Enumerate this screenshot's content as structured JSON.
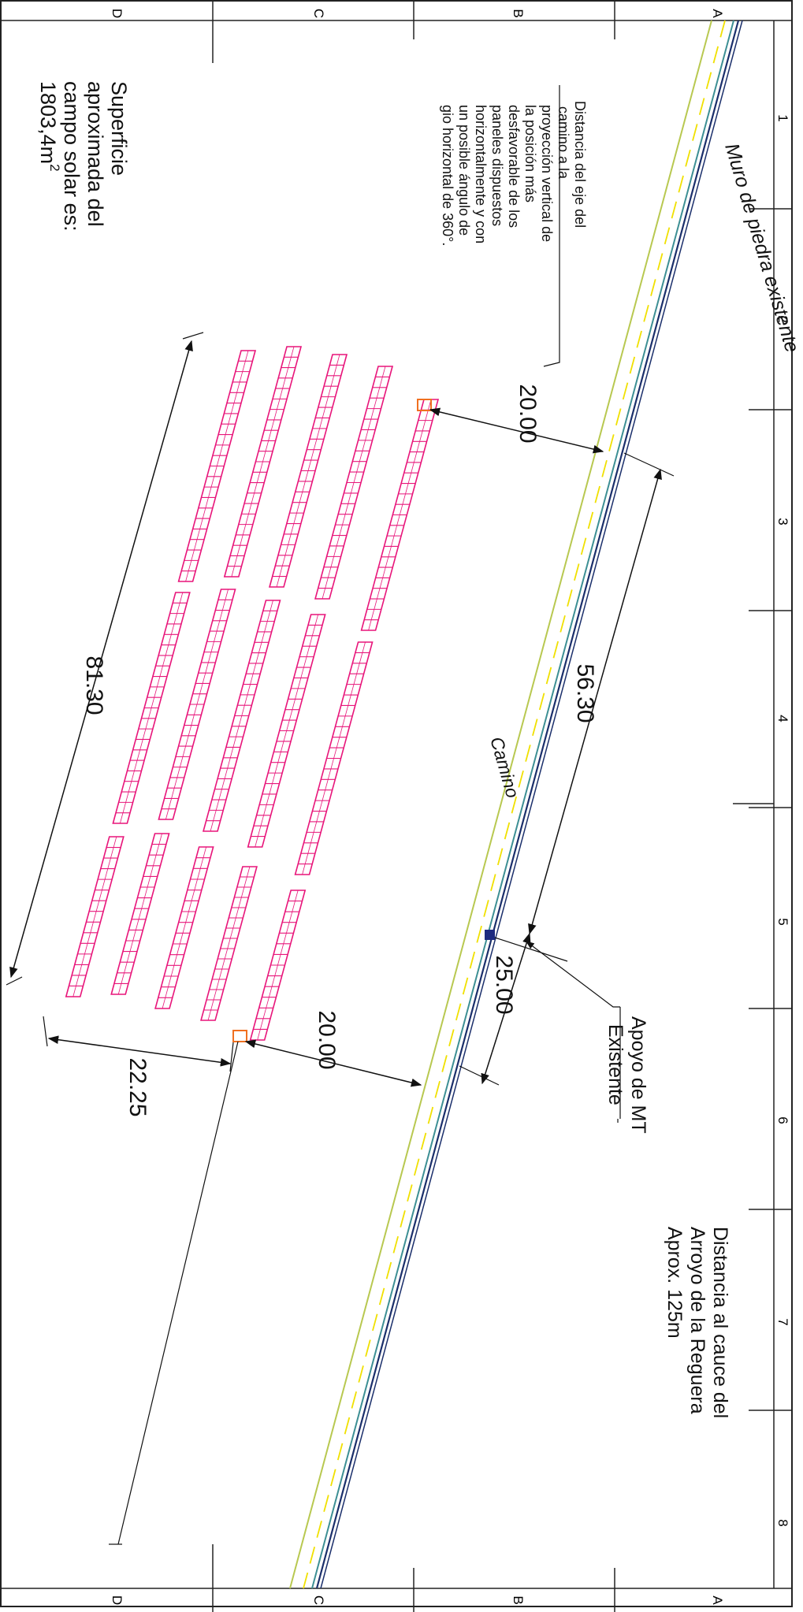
{
  "frame": {
    "row_letters": [
      "D",
      "C",
      "B",
      "A"
    ],
    "col_numbers": [
      "1",
      "2",
      "3",
      "4",
      "5",
      "6",
      "7",
      "8"
    ]
  },
  "labels": {
    "muro": "Muro de piedra existente",
    "camino": "Camino",
    "apoyo": [
      "Apoyo de MT",
      "Existente"
    ],
    "distancia_arroyo": [
      "Distancia al cauce del",
      "Arroyo de la Reguera",
      "Aprox. 125m"
    ],
    "superficie": [
      "Superficie",
      "aproximada del",
      "campo solar es:",
      "1803,4m"
    ],
    "superficie_sup": "2",
    "distancia_eje": [
      "Distancia del eje del",
      "camino a la",
      "proyección vertical de",
      "la posición más",
      "desfavorable de los",
      "paneles dispuestos",
      "horizontalmente y con",
      "un posible ángulo de",
      "gio horizontal de 360°."
    ]
  },
  "dimensions": {
    "d_20_top": "20.00",
    "d_56_30": "56.30",
    "d_25_00": "25.00",
    "d_20_bottom": "20.00",
    "d_22_25": "22.25",
    "d_81_30": "81.30"
  },
  "colors": {
    "panel": "#e8157a",
    "road_edge": "#b8c850",
    "road_center": "#f0e000",
    "wall_dark": "#1b2f6b",
    "wall_teal": "#3d8f94",
    "pole": "#1c2a80",
    "corner_marker": "#f07020"
  }
}
